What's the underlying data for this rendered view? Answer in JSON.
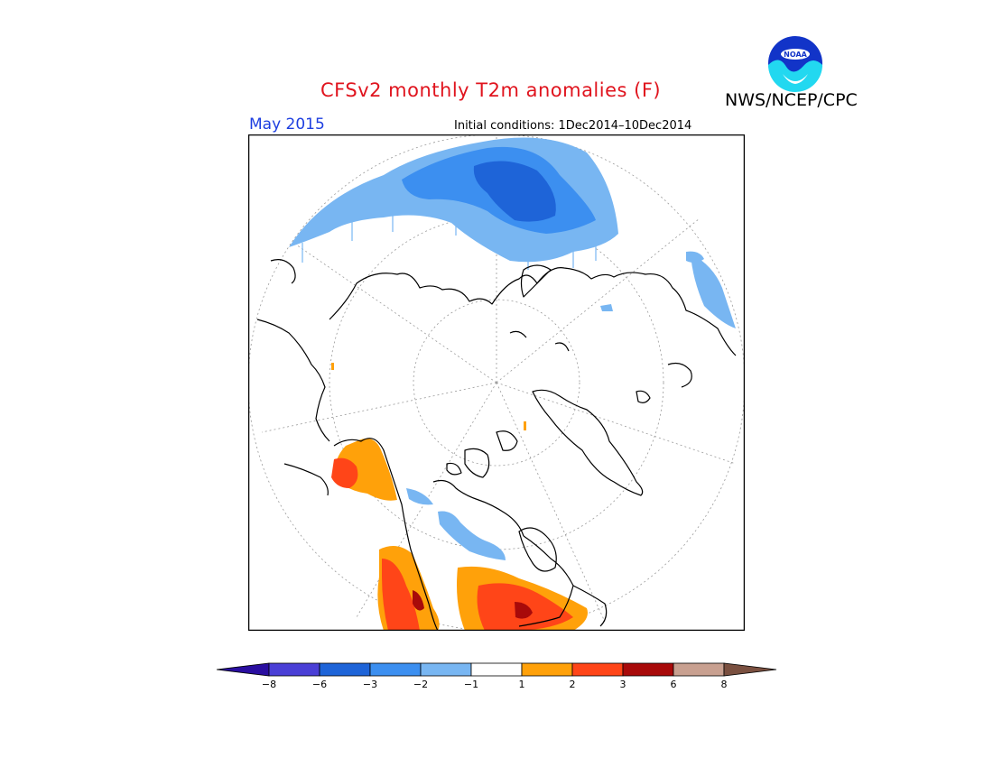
{
  "title": "CFSv2 monthly T2m anomalies (F)",
  "agency": "NWS/NCEP/CPC",
  "logo_text": "NOAA",
  "month": "May 2015",
  "initial_conditions": "Initial conditions: 1Dec2014–10Dec2014",
  "colorbar": {
    "colors": [
      "#2a0ea0",
      "#4a3fd6",
      "#1e64d8",
      "#3c8ff0",
      "#78b6f2",
      "#ffffff",
      "#ffa10a",
      "#ff4518",
      "#a80a0a",
      "#c8a090",
      "#7a5040"
    ],
    "tick_labels": [
      "−8",
      "−6",
      "−3",
      "−2",
      "−1",
      "1",
      "2",
      "3",
      "6",
      "8"
    ]
  },
  "colors": {
    "title": "#e0141e",
    "month": "#1d3ee0",
    "cold_light": "#78b6f2",
    "cold_mid": "#3c8ff0",
    "cold_dark": "#1e64d8",
    "warm_light": "#ffa10a",
    "warm_mid": "#ff4518",
    "warm_dark": "#a80a0a"
  }
}
